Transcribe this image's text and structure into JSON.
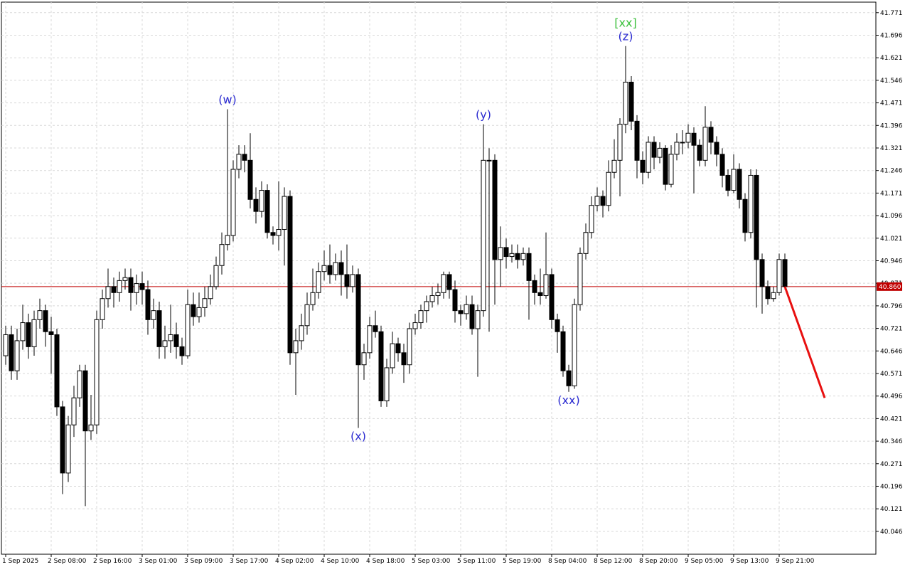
{
  "chart_data": {
    "type": "candlestick",
    "categories": [
      "1 Sep 2025",
      null,
      null,
      null,
      null,
      null,
      null,
      null,
      "2 Sep 08:00",
      null,
      null,
      null,
      null,
      null,
      null,
      null,
      "2 Sep 16:00",
      null,
      null,
      null,
      null,
      null,
      null,
      null,
      "3 Sep 01:00",
      null,
      null,
      null,
      null,
      null,
      null,
      null,
      "3 Sep 09:00",
      null,
      null,
      null,
      null,
      null,
      null,
      null,
      "3 Sep 17:00",
      null,
      null,
      null,
      null,
      null,
      null,
      null,
      "4 Sep 02:00",
      null,
      null,
      null,
      null,
      null,
      null,
      null,
      "4 Sep 10:00",
      null,
      null,
      null,
      null,
      null,
      null,
      null,
      "4 Sep 18:00",
      null,
      null,
      null,
      null,
      null,
      null,
      null,
      "5 Sep 03:00",
      null,
      null,
      null,
      null,
      null,
      null,
      null,
      "5 Sep 11:00",
      null,
      null,
      null,
      null,
      null,
      null,
      null,
      "5 Sep 19:00",
      null,
      null,
      null,
      null,
      null,
      null,
      null,
      "8 Sep 04:00",
      null,
      null,
      null,
      null,
      null,
      null,
      null,
      "8 Sep 12:00",
      null,
      null,
      null,
      null,
      null,
      null,
      null,
      "8 Sep 20:00",
      null,
      null,
      null,
      null,
      null,
      null,
      null,
      "9 Sep 05:00",
      null,
      null,
      null,
      null,
      null,
      null,
      null,
      "9 Sep 13:00",
      null,
      null,
      null,
      null,
      null,
      null,
      null,
      "9 Sep 21:00",
      null
    ],
    "open": [
      40.63,
      40.7,
      40.58,
      40.68,
      40.74,
      40.66,
      40.75,
      40.78,
      40.71,
      40.7,
      40.46,
      40.24,
      40.4,
      40.49,
      40.58,
      40.38,
      40.4,
      40.75,
      40.82,
      40.86,
      40.84,
      40.88,
      40.89,
      40.84,
      40.87,
      40.85,
      40.75,
      40.78,
      40.66,
      40.68,
      40.7,
      40.66,
      40.63,
      40.8,
      40.76,
      40.79,
      40.82,
      40.86,
      40.93,
      41.0,
      41.03,
      41.25,
      41.3,
      41.28,
      41.15,
      41.11,
      41.18,
      41.04,
      41.03,
      41.05,
      41.16,
      40.64,
      40.68,
      40.73,
      40.8,
      40.84,
      40.91,
      40.93,
      40.9,
      40.94,
      40.9,
      40.86,
      40.9,
      40.6,
      40.64,
      40.73,
      40.71,
      40.48,
      40.59,
      40.67,
      40.64,
      40.6,
      40.72,
      40.74,
      40.78,
      40.81,
      40.83,
      40.84,
      40.9,
      40.85,
      40.78,
      40.77,
      40.8,
      40.72,
      40.78,
      41.28,
      41.28,
      40.95,
      40.99,
      40.96,
      40.97,
      40.95,
      40.97,
      40.88,
      40.84,
      40.83,
      40.9,
      40.75,
      40.71,
      40.58,
      40.53,
      40.8,
      40.97,
      41.04,
      41.13,
      41.16,
      41.13,
      41.24,
      41.28,
      41.4,
      41.54,
      41.41,
      41.28,
      41.24,
      41.34,
      41.29,
      41.32,
      41.2,
      41.3,
      41.34,
      41.34,
      41.37,
      41.33,
      41.28,
      41.39,
      41.34,
      41.3,
      41.23,
      41.18,
      41.25,
      41.15,
      41.04,
      41.23,
      40.95,
      40.86,
      40.82,
      40.84,
      40.95
    ],
    "high": [
      40.73,
      40.73,
      40.72,
      40.8,
      40.77,
      40.78,
      40.82,
      40.8,
      40.76,
      40.72,
      40.48,
      40.43,
      40.53,
      40.6,
      40.6,
      40.5,
      40.78,
      40.85,
      40.92,
      40.89,
      40.91,
      40.92,
      40.92,
      40.9,
      40.91,
      40.88,
      40.82,
      40.81,
      40.73,
      40.8,
      40.74,
      40.69,
      40.85,
      40.84,
      40.84,
      40.86,
      40.9,
      40.96,
      41.04,
      41.45,
      41.28,
      41.33,
      41.33,
      41.37,
      41.19,
      41.21,
      41.2,
      41.06,
      41.21,
      41.19,
      41.18,
      40.72,
      40.77,
      40.84,
      40.92,
      40.94,
      40.98,
      41.0,
      40.97,
      40.98,
      41.0,
      40.93,
      40.92,
      40.67,
      40.76,
      40.78,
      40.73,
      40.62,
      40.71,
      40.69,
      40.67,
      40.74,
      40.77,
      40.8,
      40.83,
      40.86,
      40.87,
      40.91,
      40.91,
      40.88,
      40.8,
      40.83,
      40.83,
      40.8,
      41.4,
      41.32,
      41.3,
      41.06,
      41.02,
      41.0,
      41.0,
      40.99,
      40.99,
      40.9,
      40.92,
      41.04,
      40.92,
      40.77,
      40.73,
      40.6,
      40.82,
      40.99,
      41.07,
      41.16,
      41.19,
      41.18,
      41.28,
      41.35,
      41.42,
      41.66,
      41.56,
      41.43,
      41.31,
      41.36,
      41.36,
      41.34,
      41.33,
      41.33,
      41.37,
      41.38,
      41.4,
      41.39,
      41.35,
      41.46,
      41.41,
      41.36,
      41.32,
      41.25,
      41.3,
      41.27,
      41.17,
      41.25,
      41.25,
      40.97,
      40.88,
      40.86,
      40.97,
      40.97
    ],
    "low": [
      40.6,
      40.55,
      40.55,
      40.65,
      40.62,
      40.63,
      40.72,
      40.66,
      40.57,
      40.43,
      40.17,
      40.21,
      40.36,
      40.46,
      40.13,
      40.35,
      40.37,
      40.72,
      40.79,
      40.79,
      40.81,
      40.85,
      40.78,
      40.8,
      40.8,
      40.7,
      40.72,
      40.62,
      40.62,
      40.64,
      40.62,
      40.6,
      40.62,
      40.73,
      40.74,
      40.76,
      40.8,
      40.85,
      40.9,
      40.98,
      41.01,
      41.22,
      41.24,
      41.12,
      41.07,
      41.09,
      41.02,
      41.0,
      40.98,
      40.93,
      40.6,
      40.5,
      40.65,
      40.7,
      40.78,
      40.82,
      40.88,
      40.87,
      40.88,
      40.83,
      40.82,
      40.84,
      40.39,
      40.55,
      40.62,
      40.69,
      40.46,
      40.46,
      40.57,
      40.61,
      40.54,
      40.57,
      40.7,
      40.72,
      40.74,
      40.79,
      40.8,
      40.82,
      40.82,
      40.74,
      40.73,
      40.75,
      40.7,
      40.56,
      40.76,
      40.71,
      40.8,
      40.86,
      40.92,
      40.94,
      40.92,
      40.93,
      40.75,
      40.8,
      40.8,
      40.82,
      40.72,
      40.64,
      40.56,
      40.51,
      40.52,
      40.78,
      40.95,
      41.02,
      41.11,
      41.09,
      41.11,
      41.22,
      41.16,
      41.37,
      41.38,
      41.22,
      41.2,
      41.22,
      41.25,
      41.27,
      41.18,
      41.19,
      41.28,
      41.3,
      41.32,
      41.17,
      41.26,
      41.26,
      41.3,
      41.26,
      41.19,
      41.16,
      41.17,
      41.12,
      41.01,
      41.02,
      40.79,
      40.77,
      40.8,
      40.81,
      40.83,
      40.85
    ],
    "close": [
      40.7,
      40.58,
      40.68,
      40.74,
      40.66,
      40.75,
      40.78,
      40.71,
      40.7,
      40.46,
      40.24,
      40.4,
      40.49,
      40.58,
      40.38,
      40.4,
      40.75,
      40.82,
      40.86,
      40.84,
      40.88,
      40.89,
      40.84,
      40.87,
      40.85,
      40.75,
      40.78,
      40.66,
      40.68,
      40.7,
      40.66,
      40.63,
      40.8,
      40.76,
      40.79,
      40.82,
      40.86,
      40.93,
      41.0,
      41.03,
      41.25,
      41.3,
      41.28,
      41.15,
      41.11,
      41.18,
      41.04,
      41.03,
      41.05,
      41.16,
      40.64,
      40.68,
      40.73,
      40.8,
      40.84,
      40.91,
      40.93,
      40.9,
      40.94,
      40.9,
      40.86,
      40.9,
      40.6,
      40.64,
      40.73,
      40.71,
      40.48,
      40.59,
      40.67,
      40.64,
      40.6,
      40.72,
      40.74,
      40.78,
      40.81,
      40.83,
      40.84,
      40.9,
      40.85,
      40.78,
      40.77,
      40.8,
      40.72,
      40.78,
      41.28,
      41.28,
      40.95,
      40.99,
      40.96,
      40.97,
      40.95,
      40.97,
      40.88,
      40.84,
      40.83,
      40.9,
      40.75,
      40.71,
      40.58,
      40.53,
      40.8,
      40.97,
      41.04,
      41.13,
      41.16,
      41.13,
      41.24,
      41.28,
      41.4,
      41.54,
      41.41,
      41.28,
      41.24,
      41.34,
      41.29,
      41.32,
      41.2,
      41.3,
      41.34,
      41.34,
      41.37,
      41.33,
      41.28,
      41.39,
      41.34,
      41.3,
      41.23,
      41.18,
      41.25,
      41.15,
      41.04,
      41.23,
      40.95,
      40.86,
      40.82,
      40.84,
      40.95,
      40.86
    ],
    "up_color": "#ffffff",
    "down_color": "#000000",
    "ylim": [
      39.97,
      41.806
    ],
    "yticks": [
      41.771,
      41.696,
      41.621,
      41.546,
      41.471,
      41.396,
      41.321,
      41.246,
      41.171,
      41.096,
      41.021,
      40.946,
      40.871,
      40.796,
      40.721,
      40.646,
      40.571,
      40.496,
      40.421,
      40.346,
      40.271,
      40.196,
      40.121,
      40.046
    ],
    "grid": true,
    "current_price": {
      "value": 40.86,
      "label": "40.860",
      "color": "#c00000"
    },
    "projection": {
      "color": "#e81010",
      "from_index": 137,
      "to_index": 144,
      "values": [
        40.86,
        40.49
      ]
    },
    "annotations": [
      {
        "text": "(w)",
        "index": 39,
        "value": 41.45,
        "position": "above",
        "color": "#2a2ad0"
      },
      {
        "text": "(x)",
        "index": 62,
        "value": 40.39,
        "position": "below",
        "color": "#2a2ad0"
      },
      {
        "text": "(y)",
        "index": 84,
        "value": 41.4,
        "position": "above",
        "color": "#2a2ad0"
      },
      {
        "text": "(xx)",
        "index": 99,
        "value": 40.51,
        "position": "below",
        "color": "#2a2ad0"
      },
      {
        "text": "(z)",
        "index": 109,
        "value": 41.66,
        "position": "above",
        "color": "#2a2ad0"
      },
      {
        "text": "[xx]",
        "index": 109,
        "value": 41.66,
        "position": "above",
        "color": "#3cc03c"
      }
    ]
  }
}
